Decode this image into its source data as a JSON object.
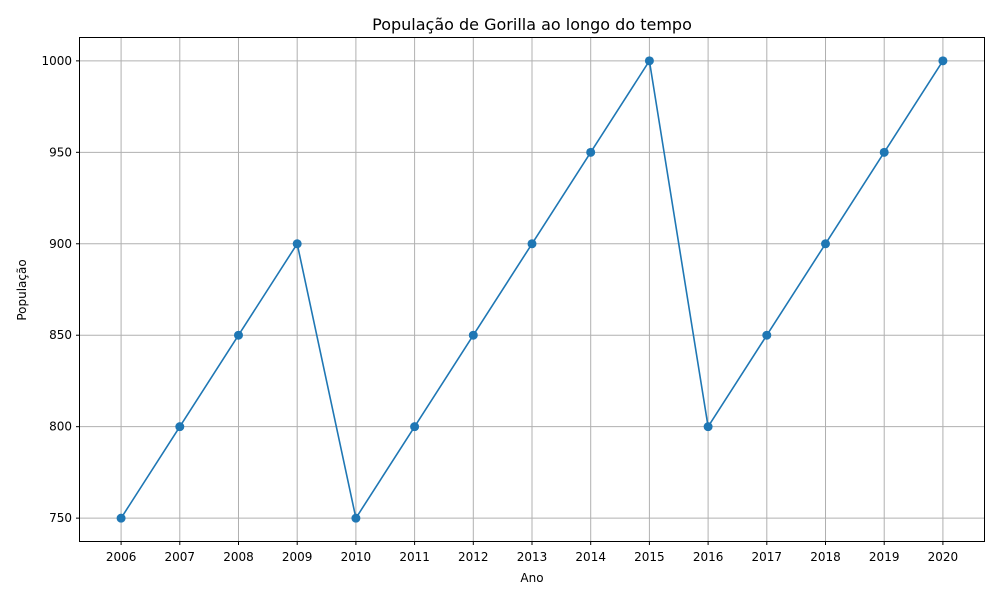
{
  "chart_data": {
    "type": "line",
    "title": "População de Gorilla ao longo do tempo",
    "xlabel": "Ano",
    "ylabel": "População",
    "x": [
      2006,
      2007,
      2008,
      2009,
      2010,
      2011,
      2012,
      2013,
      2014,
      2015,
      2016,
      2017,
      2018,
      2019,
      2020
    ],
    "series": [
      {
        "values": [
          750,
          800,
          850,
          900,
          750,
          800,
          850,
          900,
          950,
          1000,
          800,
          850,
          900,
          950,
          1000
        ]
      }
    ],
    "xlim": [
      2005.3,
      2020.7
    ],
    "ylim": [
      737.5,
      1012.5
    ],
    "yticks": [
      750,
      800,
      850,
      900,
      950,
      1000
    ],
    "grid": true,
    "legend": "none",
    "marker": "circle",
    "colors": {
      "line": "#1f77b4",
      "grid": "#b0b0b0",
      "axis": "#000000"
    }
  }
}
